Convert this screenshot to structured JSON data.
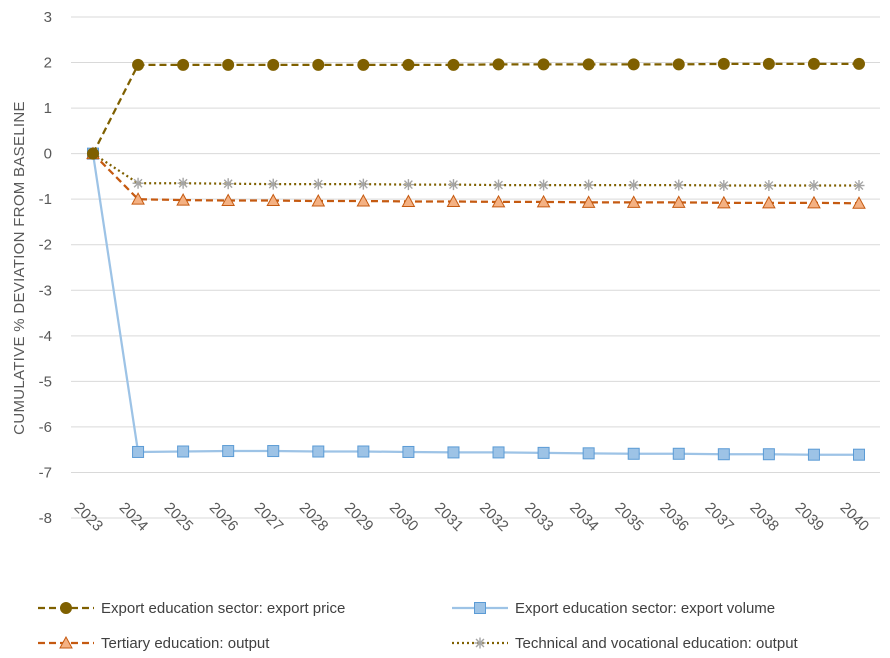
{
  "chart_data": {
    "type": "line",
    "title": "",
    "xlabel": "",
    "ylabel": "CUMULATIVE % DEVIATION FROM BASELINE",
    "ylim": [
      -8,
      3
    ],
    "yticks": [
      "3",
      "2",
      "1",
      "0",
      "-1",
      "-2",
      "-3",
      "-4",
      "-5",
      "-6",
      "-7",
      "-8"
    ],
    "grid": "horizontal",
    "legend_position": "bottom",
    "categories": [
      "2023",
      "2024",
      "2025",
      "2026",
      "2027",
      "2028",
      "2029",
      "2030",
      "2031",
      "2032",
      "2033",
      "2034",
      "2035",
      "2036",
      "2037",
      "2038",
      "2039",
      "2040"
    ],
    "series": [
      {
        "name": "Export education sector: export price",
        "color": "#7f6000",
        "line_style": "dashed",
        "marker": "circle",
        "values": [
          0,
          1.95,
          1.95,
          1.95,
          1.95,
          1.95,
          1.95,
          1.95,
          1.95,
          1.96,
          1.96,
          1.96,
          1.96,
          1.96,
          1.97,
          1.97,
          1.97,
          1.97
        ]
      },
      {
        "name": "Export education sector: export volume",
        "color": "#9dc3e6",
        "marker_fill": "#9dc3e6",
        "marker_stroke": "#5b9bd5",
        "line_style": "solid",
        "marker": "square",
        "values": [
          0,
          -6.55,
          -6.54,
          -6.53,
          -6.53,
          -6.54,
          -6.54,
          -6.55,
          -6.56,
          -6.56,
          -6.57,
          -6.58,
          -6.59,
          -6.59,
          -6.6,
          -6.6,
          -6.61,
          -6.61
        ]
      },
      {
        "name": "Tertiary education: output",
        "color": "#c55a11",
        "marker_fill": "#f4b183",
        "line_style": "dashed",
        "marker": "triangle",
        "values": [
          0,
          -1.0,
          -1.02,
          -1.03,
          -1.03,
          -1.04,
          -1.04,
          -1.05,
          -1.05,
          -1.06,
          -1.06,
          -1.07,
          -1.07,
          -1.07,
          -1.08,
          -1.08,
          -1.08,
          -1.09
        ]
      },
      {
        "name": "Technical and vocational education: output",
        "color": "#7f6000",
        "marker_color": "#a5a5a5",
        "line_style": "dotted",
        "marker": "asterisk",
        "values": [
          0,
          -0.65,
          -0.65,
          -0.66,
          -0.67,
          -0.67,
          -0.67,
          -0.68,
          -0.68,
          -0.69,
          -0.69,
          -0.69,
          -0.69,
          -0.69,
          -0.7,
          -0.7,
          -0.7,
          -0.7
        ]
      }
    ]
  }
}
